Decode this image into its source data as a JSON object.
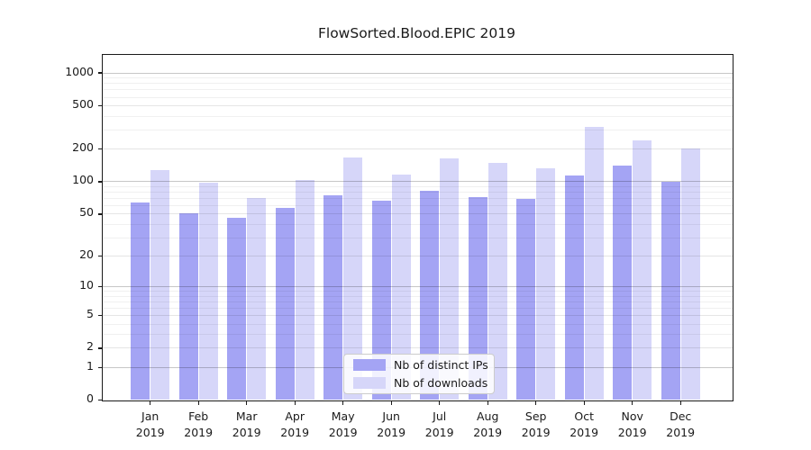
{
  "chart_data": {
    "type": "bar",
    "title": "FlowSorted.Blood.EPIC 2019",
    "categories": [
      "Jan",
      "Feb",
      "Mar",
      "Apr",
      "May",
      "Jun",
      "Jul",
      "Aug",
      "Sep",
      "Oct",
      "Nov",
      "Dec"
    ],
    "category_year": "2019",
    "series": [
      {
        "name": "Nb of distinct IPs",
        "color": "#a4a4f4",
        "values": [
          63,
          50,
          46,
          57,
          74,
          66,
          81,
          71,
          69,
          114,
          139,
          98
        ]
      },
      {
        "name": "Nb of downloads",
        "color": "#d6d6f9",
        "values": [
          126,
          97,
          70,
          102,
          165,
          115,
          163,
          147,
          133,
          320,
          240,
          199
        ]
      }
    ],
    "yscale": "log1p",
    "ytick_values": [
      0,
      1,
      2,
      5,
      10,
      20,
      50,
      100,
      200,
      500,
      1000
    ],
    "ytick_labels": [
      "0",
      "1",
      "2",
      "5",
      "10",
      "20",
      "50",
      "100",
      "200",
      "500",
      "1000"
    ],
    "gridline_values_major": [
      1,
      10,
      100,
      1000
    ],
    "gridline_values_mid": [
      2,
      5,
      20,
      50,
      200,
      500
    ],
    "gridline_values_minor": [
      3,
      4,
      6,
      7,
      8,
      9,
      30,
      40,
      60,
      70,
      80,
      90,
      300,
      400,
      600,
      700,
      800,
      900
    ],
    "ylim": [
      0,
      1450
    ],
    "grid": "both",
    "legend_position": "lower-center"
  }
}
